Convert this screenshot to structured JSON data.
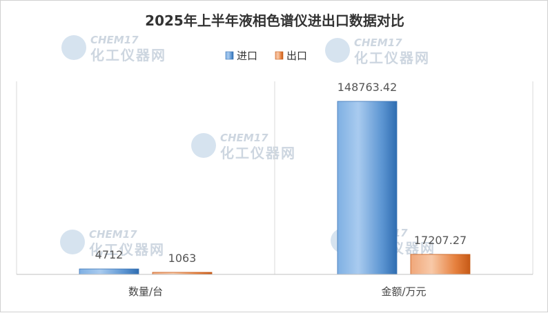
{
  "chart_data": {
    "type": "bar",
    "title": "2025年上半年液相色谱仪进出口数据对比",
    "categories": [
      "数量/台",
      "金额/万元"
    ],
    "series": [
      {
        "name": "进口",
        "color": "#4a86c8",
        "values": [
          4712,
          148763.42
        ],
        "labels": [
          "4712",
          "148763.42"
        ]
      },
      {
        "name": "出口",
        "color": "#e0762b",
        "values": [
          1063,
          17207.27
        ],
        "labels": [
          "1063",
          "17207.27"
        ]
      }
    ],
    "legend_position": "top-center",
    "grid": false
  },
  "watermark": {
    "text_en": "CHEM17",
    "text_cn": "化工仪器网"
  }
}
